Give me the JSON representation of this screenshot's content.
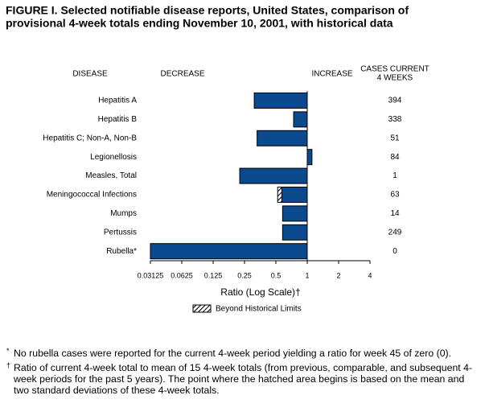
{
  "chart_data": {
    "type": "bar",
    "orientation": "horizontal",
    "title": [
      "FIGURE I. Selected notifiable disease reports, United States, comparison of",
      "provisional 4-week totals ending November 10, 2001, with historical data"
    ],
    "headers": {
      "disease": "DISEASE",
      "decrease": "DECREASE",
      "increase": "INCREASE",
      "cases": [
        "CASES CURRENT",
        "4 WEEKS"
      ]
    },
    "categories": [
      "Hepatitis A",
      "Hepatitis B",
      "Hepatitis C; Non-A, Non-B",
      "Legionellosis",
      "Measles, Total",
      "Meningococcal Infections",
      "Mumps",
      "Pertussis",
      "Rubella*"
    ],
    "values": [
      0.31,
      0.74,
      0.33,
      1.11,
      0.225,
      0.52,
      0.58,
      0.58,
      0.03125
    ],
    "limits": [
      null,
      null,
      null,
      null,
      null,
      0.57,
      null,
      null,
      null
    ],
    "cases": [
      394,
      338,
      51,
      84,
      1,
      63,
      14,
      249,
      0
    ],
    "color": "#0b4a8f",
    "xscale": "log",
    "xlim": [
      0.03125,
      4
    ],
    "xticks": [
      0.03125,
      0.0625,
      0.125,
      0.25,
      0.5,
      1,
      2,
      4
    ],
    "xlabel": "Ratio (Log Scale)†",
    "legend": "Beyond Historical Limits",
    "footnotes": [
      {
        "mark": "*",
        "text": "No rubella cases were reported for the current 4-week period yielding a ratio for week 45 of zero (0)."
      },
      {
        "mark": "†",
        "text": "Ratio of current 4-week total to mean of 15 4-week totals (from previous, comparable, and subsequent 4-week periods for the past 5 years). The point where the hatched area begins is based on the mean and two standard deviations of these 4-week totals."
      }
    ]
  }
}
